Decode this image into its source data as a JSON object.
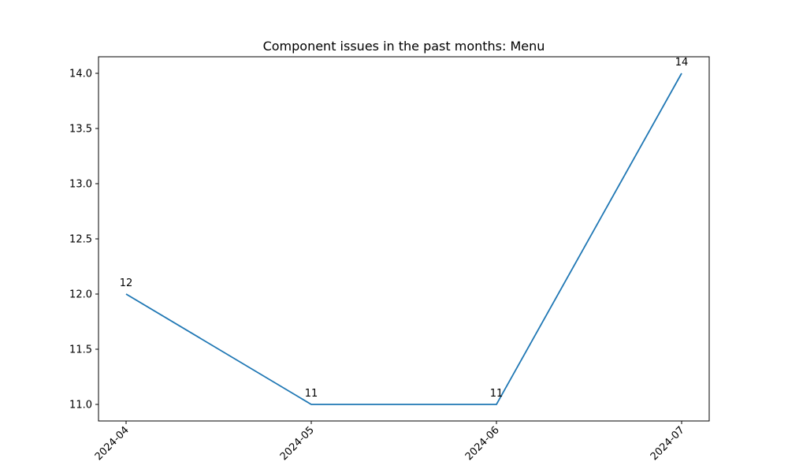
{
  "chart_data": {
    "type": "line",
    "title": "Component issues in the past months: Menu",
    "xlabel": "",
    "ylabel": "",
    "categories": [
      "2024-04",
      "2024-05",
      "2024-06",
      "2024-07"
    ],
    "series": [
      {
        "values": [
          12,
          11,
          11,
          14
        ],
        "color": "#1f77b4"
      }
    ],
    "data_labels": [
      "12",
      "11",
      "11",
      "14"
    ],
    "ylim": [
      10.85,
      14.15
    ],
    "yticks": [
      11.0,
      11.5,
      12.0,
      12.5,
      13.0,
      13.5,
      14.0
    ],
    "ytick_labels": [
      "11.0",
      "11.5",
      "12.0",
      "12.5",
      "13.0",
      "13.5",
      "14.0"
    ],
    "grid": false,
    "legend": "none",
    "xtick_rotation": 45
  }
}
